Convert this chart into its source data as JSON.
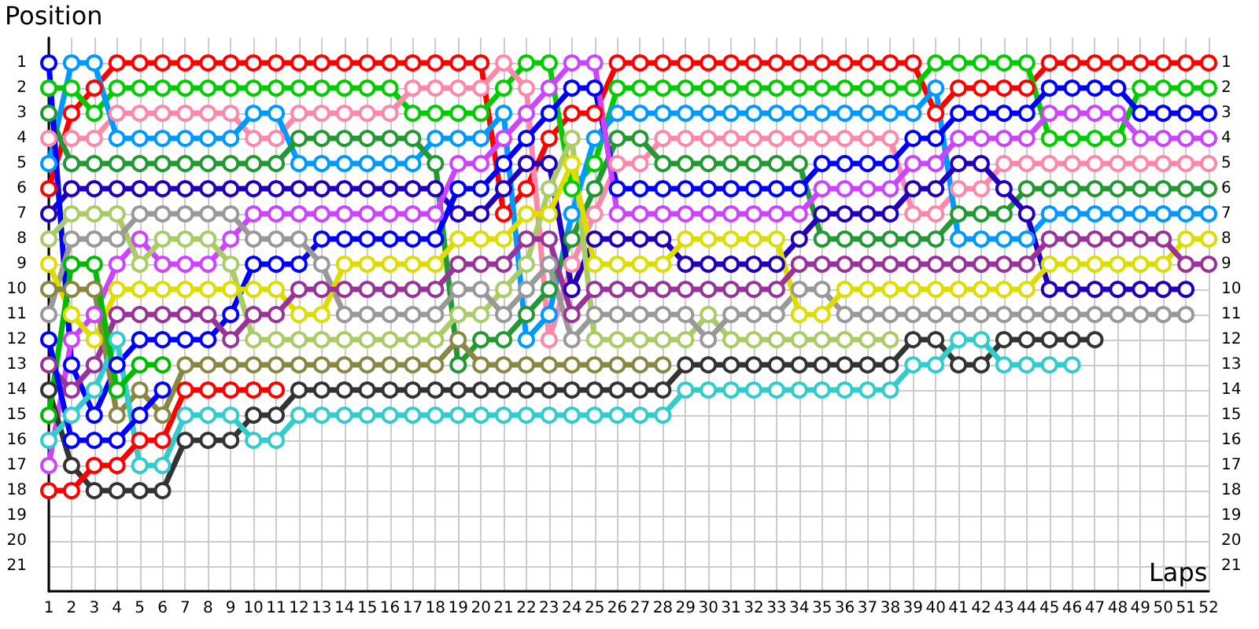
{
  "chart_data": {
    "type": "line",
    "xlabel": "Laps",
    "ylabel": "Position",
    "x": [
      1,
      2,
      3,
      4,
      5,
      6,
      7,
      8,
      9,
      10,
      11,
      12,
      13,
      14,
      15,
      16,
      17,
      18,
      19,
      20,
      21,
      22,
      23,
      24,
      25,
      26,
      27,
      28,
      29,
      30,
      31,
      32,
      33,
      34,
      35,
      36,
      37,
      38,
      39,
      40,
      41,
      42,
      43,
      44,
      45,
      46,
      47,
      48,
      49,
      50,
      51,
      52
    ],
    "xlim": [
      1,
      52
    ],
    "xticks": [
      1,
      2,
      3,
      4,
      5,
      6,
      7,
      8,
      9,
      10,
      11,
      12,
      13,
      14,
      15,
      16,
      17,
      18,
      19,
      20,
      21,
      22,
      23,
      24,
      25,
      26,
      27,
      28,
      29,
      30,
      31,
      32,
      33,
      34,
      35,
      36,
      37,
      38,
      39,
      40,
      41,
      42,
      43,
      44,
      45,
      46,
      47,
      48,
      49,
      50,
      51,
      52
    ],
    "ylim": [
      22,
      0
    ],
    "yticks": [
      1,
      2,
      3,
      4,
      5,
      6,
      7,
      8,
      9,
      10,
      11,
      12,
      13,
      14,
      15,
      16,
      17,
      18,
      19,
      20,
      21
    ],
    "y2lim": [
      22,
      0
    ],
    "y2ticks": [
      1,
      2,
      3,
      4,
      5,
      6,
      7,
      8,
      9,
      10,
      11,
      12,
      13,
      14,
      15,
      16,
      17,
      18,
      19,
      20,
      21
    ],
    "grid": true,
    "marker": "circle",
    "line_style": "solid",
    "series": [
      {
        "color": "#ff0000",
        "values": [
          6,
          3,
          2,
          1,
          1,
          1,
          1,
          1,
          1,
          1,
          1,
          1,
          1,
          1,
          1,
          1,
          1,
          1,
          1,
          1,
          7,
          6,
          4,
          3,
          3,
          1,
          1,
          1,
          1,
          1,
          1,
          1,
          1,
          1,
          1,
          1,
          1,
          1,
          1,
          3,
          2,
          2,
          2,
          2,
          1,
          1,
          1,
          1,
          1,
          1,
          1,
          1
        ]
      },
      {
        "color": "#00cc00",
        "values": [
          2,
          2,
          3,
          2,
          2,
          2,
          2,
          2,
          2,
          2,
          2,
          2,
          2,
          2,
          2,
          2,
          3,
          3,
          3,
          3,
          2,
          1,
          1,
          6,
          5,
          2,
          2,
          2,
          2,
          2,
          2,
          2,
          2,
          2,
          2,
          2,
          2,
          2,
          2,
          1,
          1,
          1,
          1,
          1,
          4,
          4,
          4,
          4,
          2,
          2,
          2,
          2
        ]
      },
      {
        "color": "#ff88aa",
        "values": [
          4,
          4,
          4,
          3,
          3,
          3,
          3,
          3,
          3,
          4,
          4,
          3,
          3,
          3,
          3,
          3,
          2,
          2,
          2,
          2,
          1,
          2,
          12,
          9,
          7,
          5,
          5,
          4,
          4,
          4,
          4,
          4,
          4,
          4,
          4,
          4,
          4,
          4,
          7,
          7,
          6,
          6,
          5,
          5,
          5,
          5,
          5,
          5,
          5,
          5,
          5,
          5
        ]
      },
      {
        "color": "#0099ff",
        "values": [
          5,
          1,
          1,
          4,
          4,
          4,
          4,
          4,
          4,
          3,
          3,
          5,
          5,
          5,
          5,
          5,
          5,
          4,
          4,
          4,
          3,
          12,
          11,
          7,
          4,
          3,
          3,
          3,
          3,
          3,
          3,
          3,
          3,
          3,
          3,
          3,
          3,
          3,
          3,
          2,
          8,
          8,
          8,
          8,
          7,
          7,
          7,
          7,
          7,
          7,
          7,
          7
        ]
      },
      {
        "color": "#229933",
        "values": [
          3,
          5,
          5,
          5,
          5,
          5,
          5,
          5,
          5,
          5,
          5,
          4,
          4,
          4,
          4,
          4,
          4,
          5,
          13,
          12,
          12,
          11,
          10,
          8,
          6,
          4,
          4,
          5,
          5,
          5,
          5,
          5,
          5,
          5,
          8,
          8,
          8,
          8,
          8,
          8,
          7,
          7,
          7,
          6,
          6,
          6,
          6,
          6,
          6,
          6,
          6,
          6
        ]
      },
      {
        "color": "#2200bb",
        "values": [
          7,
          6,
          6,
          6,
          6,
          6,
          6,
          6,
          6,
          6,
          6,
          6,
          6,
          6,
          6,
          6,
          6,
          6,
          7,
          7,
          6,
          5,
          5,
          10,
          8,
          8,
          8,
          8,
          9,
          9,
          9,
          9,
          9,
          8,
          7,
          7,
          7,
          7,
          6,
          6,
          5,
          5,
          6,
          7,
          10,
          10,
          10,
          10,
          10,
          10,
          10,
          null
        ]
      },
      {
        "color": "#0000ff",
        "values": [
          1,
          13,
          15,
          13,
          12,
          12,
          12,
          12,
          11,
          9,
          9,
          9,
          8,
          8,
          8,
          8,
          8,
          8,
          6,
          6,
          5,
          4,
          3,
          2,
          2,
          6,
          6,
          6,
          6,
          6,
          6,
          6,
          6,
          6,
          5,
          5,
          5,
          5,
          4,
          4,
          3,
          3,
          3,
          3,
          2,
          2,
          2,
          2,
          3,
          3,
          3,
          3
        ]
      },
      {
        "color": "#cc44ff",
        "values": [
          17,
          12,
          11,
          9,
          8,
          9,
          9,
          9,
          8,
          7,
          7,
          7,
          7,
          7,
          7,
          7,
          7,
          7,
          5,
          5,
          4,
          3,
          2,
          1,
          1,
          7,
          7,
          7,
          7,
          7,
          7,
          7,
          7,
          7,
          6,
          6,
          6,
          6,
          5,
          5,
          4,
          4,
          4,
          4,
          3,
          3,
          3,
          3,
          4,
          4,
          4,
          4
        ]
      },
      {
        "color": "#aacc66",
        "values": [
          8,
          7,
          7,
          7,
          9,
          8,
          8,
          8,
          9,
          12,
          12,
          12,
          12,
          12,
          12,
          12,
          12,
          12,
          11,
          11,
          10,
          9,
          6,
          4,
          12,
          12,
          12,
          12,
          12,
          11,
          12,
          12,
          12,
          12,
          12,
          12,
          12,
          12,
          null,
          null,
          null,
          null,
          null,
          null,
          null,
          null,
          null,
          null,
          null,
          null,
          null,
          null
        ]
      },
      {
        "color": "#999999",
        "values": [
          11,
          8,
          8,
          8,
          7,
          7,
          7,
          7,
          7,
          8,
          8,
          8,
          9,
          11,
          11,
          11,
          11,
          11,
          10,
          10,
          11,
          10,
          9,
          12,
          11,
          11,
          11,
          11,
          11,
          12,
          11,
          11,
          11,
          10,
          10,
          11,
          11,
          11,
          11,
          11,
          11,
          11,
          11,
          11,
          11,
          11,
          11,
          11,
          11,
          11,
          11,
          null
        ]
      },
      {
        "color": "#dddd00",
        "values": [
          9,
          11,
          12,
          10,
          10,
          10,
          10,
          10,
          10,
          10,
          10,
          11,
          11,
          9,
          9,
          9,
          9,
          9,
          8,
          8,
          8,
          7,
          7,
          5,
          9,
          9,
          9,
          9,
          8,
          8,
          8,
          8,
          8,
          11,
          11,
          10,
          10,
          10,
          10,
          10,
          10,
          10,
          10,
          10,
          9,
          9,
          9,
          9,
          9,
          9,
          8,
          8
        ]
      },
      {
        "color": "#993399",
        "values": [
          13,
          14,
          13,
          11,
          11,
          11,
          11,
          11,
          12,
          11,
          11,
          10,
          10,
          10,
          10,
          10,
          10,
          10,
          9,
          9,
          9,
          8,
          8,
          11,
          10,
          10,
          10,
          10,
          10,
          10,
          10,
          10,
          10,
          9,
          9,
          9,
          9,
          9,
          9,
          9,
          9,
          9,
          9,
          9,
          8,
          8,
          8,
          8,
          8,
          8,
          9,
          9
        ]
      },
      {
        "color": "#888844",
        "values": [
          10,
          10,
          10,
          15,
          14,
          15,
          13,
          13,
          13,
          13,
          13,
          13,
          13,
          13,
          13,
          13,
          13,
          13,
          12,
          13,
          13,
          13,
          13,
          13,
          13,
          13,
          13,
          13,
          null,
          null,
          null,
          null,
          null,
          null,
          null,
          null,
          null,
          null,
          null,
          null,
          null,
          null,
          null,
          null,
          null,
          null,
          null,
          null,
          null,
          null,
          null,
          null
        ]
      },
      {
        "color": "#333333",
        "values": [
          14,
          17,
          18,
          18,
          18,
          18,
          16,
          16,
          16,
          15,
          15,
          14,
          14,
          14,
          14,
          14,
          14,
          14,
          14,
          14,
          14,
          14,
          14,
          14,
          14,
          14,
          14,
          14,
          13,
          13,
          13,
          13,
          13,
          13,
          13,
          13,
          13,
          13,
          12,
          12,
          13,
          13,
          12,
          12,
          12,
          12,
          12,
          null,
          null,
          null,
          null,
          null
        ]
      },
      {
        "color": "#33cccc",
        "values": [
          16,
          15,
          14,
          12,
          17,
          17,
          15,
          15,
          15,
          16,
          16,
          15,
          15,
          15,
          15,
          15,
          15,
          15,
          15,
          15,
          15,
          15,
          15,
          15,
          15,
          15,
          15,
          15,
          14,
          14,
          14,
          14,
          14,
          14,
          14,
          14,
          14,
          14,
          13,
          13,
          12,
          12,
          13,
          13,
          13,
          13,
          null,
          null,
          null,
          null,
          null,
          null
        ]
      },
      {
        "color": "#ff0000",
        "values": [
          18,
          18,
          17,
          17,
          16,
          16,
          14,
          14,
          14,
          14,
          14,
          null,
          null,
          null,
          null,
          null,
          null,
          null,
          null,
          null,
          null,
          null,
          null,
          null,
          null,
          null,
          null,
          null,
          null,
          null,
          null,
          null,
          null,
          null,
          null,
          null,
          null,
          null,
          null,
          null,
          null,
          null,
          null,
          null,
          null,
          null,
          null,
          null,
          null,
          null,
          null,
          null
        ]
      },
      {
        "color": "#00bb00",
        "values": [
          15,
          9,
          9,
          14,
          13,
          13,
          null,
          null,
          null,
          null,
          null,
          null,
          null,
          null,
          null,
          null,
          null,
          null,
          null,
          null,
          null,
          null,
          null,
          null,
          null,
          null,
          null,
          null,
          null,
          null,
          null,
          null,
          null,
          null,
          null,
          null,
          null,
          null,
          null,
          null,
          null,
          null,
          null,
          null,
          null,
          null,
          null,
          null,
          null,
          null,
          null,
          null
        ]
      },
      {
        "color": "#0000ff",
        "values": [
          12,
          16,
          16,
          16,
          15,
          14,
          null,
          null,
          null,
          null,
          null,
          null,
          null,
          null,
          null,
          null,
          null,
          null,
          null,
          null,
          null,
          null,
          null,
          null,
          null,
          null,
          null,
          null,
          null,
          null,
          null,
          null,
          null,
          null,
          null,
          null,
          null,
          null,
          null,
          null,
          null,
          null,
          null,
          null,
          null,
          null,
          null,
          null,
          null,
          null,
          null,
          null
        ]
      }
    ]
  }
}
